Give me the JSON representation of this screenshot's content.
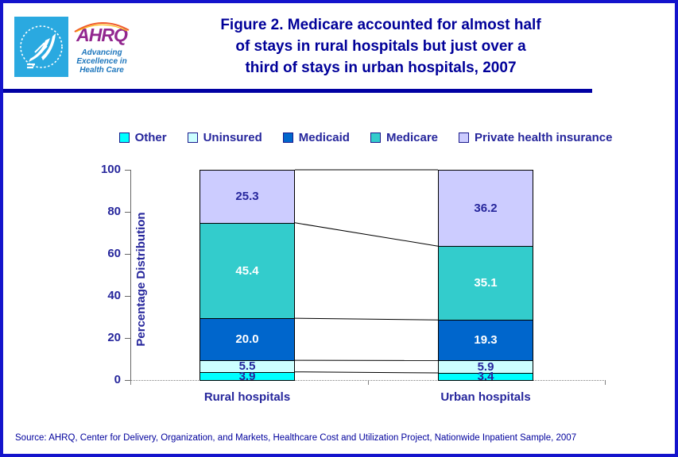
{
  "header": {
    "logo": {
      "brand": "AHRQ",
      "tagline_lines": [
        "Advancing",
        "Excellence in",
        "Health Care"
      ]
    },
    "title_lines": [
      "Figure 2. Medicare accounted for almost half",
      "of stays in rural hospitals but just over a",
      "third of stays in urban hospitals, 2007"
    ]
  },
  "chart_data": {
    "type": "bar",
    "stacked": true,
    "title": "",
    "xlabel": "",
    "ylabel": "Percentage Distribution",
    "ylim": [
      0,
      100
    ],
    "yticks": [
      0,
      20,
      40,
      60,
      80,
      100
    ],
    "legend_position": "top",
    "grid": false,
    "categories": [
      "Rural hospitals",
      "Urban hospitals"
    ],
    "series": [
      {
        "name": "Other",
        "color": "#00FFFF",
        "label_color": "#26269c",
        "values": [
          3.9,
          3.4
        ]
      },
      {
        "name": "Uninsured",
        "color": "#CCFFFF",
        "label_color": "#26269c",
        "values": [
          5.5,
          5.9
        ]
      },
      {
        "name": "Medicaid",
        "color": "#0066CC",
        "label_color": "#FFFFFF",
        "values": [
          20.0,
          19.3
        ]
      },
      {
        "name": "Medicare",
        "color": "#33CCCC",
        "label_color": "#FFFFFF",
        "values": [
          45.4,
          35.1
        ]
      },
      {
        "name": "Private health insurance",
        "color": "#CCCCFF",
        "label_color": "#26269c",
        "values": [
          25.3,
          36.2
        ]
      }
    ],
    "connector_lines": true
  },
  "colors": {
    "page_border": "#1414CC",
    "divider": "#0000A3",
    "title_text": "#000099",
    "chart_text": "#26269C",
    "segment_border": "#000000"
  },
  "source_note": "Source: AHRQ, Center for Delivery, Organization, and Markets, Healthcare Cost and Utilization Project, Nationwide Inpatient Sample, 2007"
}
